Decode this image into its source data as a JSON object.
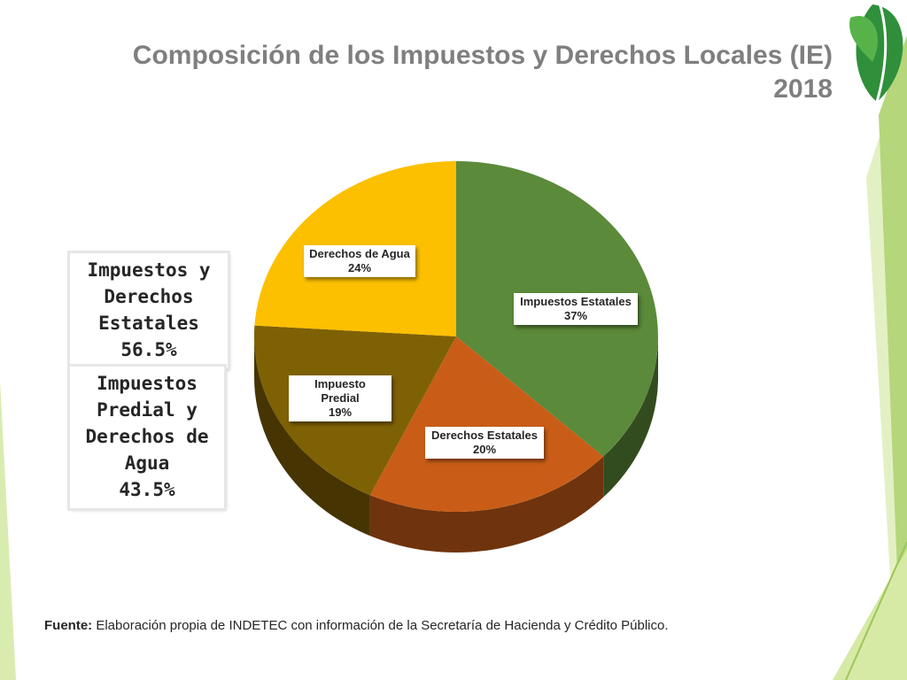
{
  "title": "Composición de los Impuestos y Derechos Locales (IE) 2018",
  "summary": [
    {
      "lines": [
        "Impuestos y",
        "Derechos",
        "Estatales",
        "56.5%"
      ]
    },
    {
      "lines": [
        "Impuestos",
        "Predial y",
        "Derechos de",
        "Agua",
        "43.5%"
      ]
    }
  ],
  "chart_data": {
    "type": "pie",
    "title": "Composición de los Impuestos y Derechos Locales (IE) 2018",
    "slices": [
      {
        "label": "Impuestos Estatales",
        "value": 37,
        "value_label": "37%",
        "color": "#5b8a3a"
      },
      {
        "label": "Derechos Estatales",
        "value": 20,
        "value_label": "20%",
        "color": "#c95d17"
      },
      {
        "label": "Impuesto Predial",
        "value": 19,
        "value_label": "19%",
        "color": "#7f6105"
      },
      {
        "label": "Derechos de Agua",
        "value": 24,
        "value_label": "24%",
        "color": "#fcc000"
      }
    ],
    "style": "3d"
  },
  "source": {
    "prefix": "Fuente:",
    "text": "Elaboración propia de INDETEC con información de la Secretaría de Hacienda y Crédito Público."
  },
  "colors": {
    "title": "#7f7f7f",
    "accent_green": "#3a9a3a",
    "light_green": "#d7ea9c"
  },
  "logo": {
    "icon": "green-leaf-logo-icon"
  }
}
